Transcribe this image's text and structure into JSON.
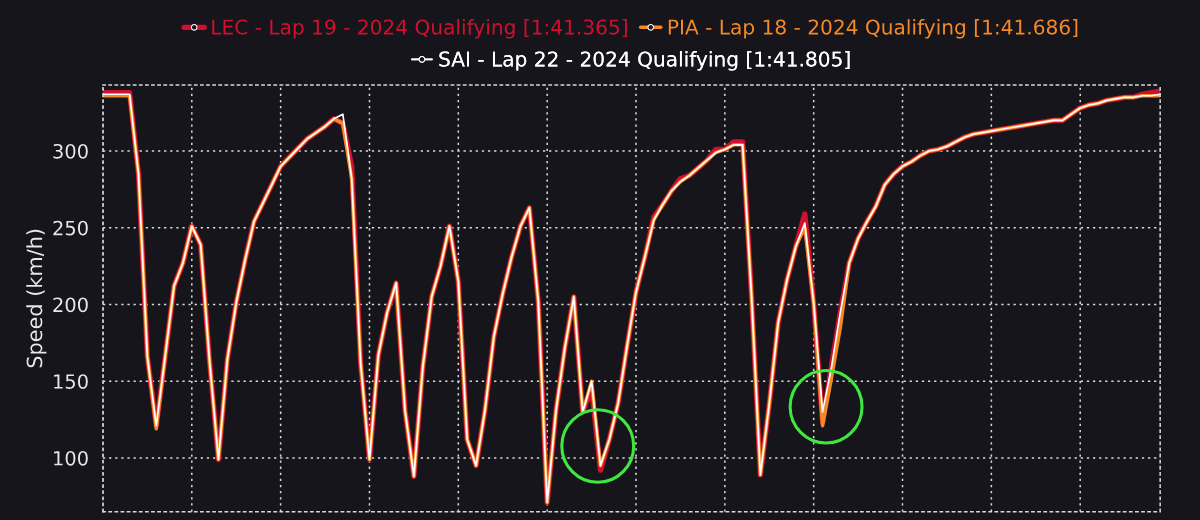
{
  "chart_data": {
    "type": "line",
    "ylabel": "Speed (km/h)",
    "categories": [
      null,
      null,
      null,
      null,
      null,
      null,
      null,
      null,
      null,
      null,
      null,
      null,
      null,
      null,
      null,
      null,
      null,
      null,
      null,
      null,
      null,
      null,
      null,
      null,
      null,
      null,
      null,
      null,
      null,
      null,
      null,
      null,
      null,
      null,
      null,
      null,
      null,
      null,
      null,
      null,
      null,
      null,
      null,
      null,
      null,
      null,
      null,
      null,
      null,
      null,
      null,
      null,
      null,
      null,
      null,
      null,
      null,
      null,
      null,
      null,
      null,
      null,
      null,
      null,
      null,
      null,
      null,
      null,
      null,
      null,
      null,
      null,
      null,
      null,
      null,
      null,
      null,
      null,
      null,
      null,
      null,
      null,
      null,
      null,
      null,
      null,
      null,
      null,
      null,
      null,
      null,
      null,
      null,
      null,
      null,
      null,
      null,
      null,
      null,
      null,
      null,
      null,
      null,
      null,
      null,
      null,
      null,
      null,
      null,
      null,
      null,
      null,
      null,
      null,
      null,
      null,
      null,
      null,
      null,
      null
    ],
    "series": [
      {
        "name": "LEC - Lap 19 - 2024 Qualifying [1:41.365]",
        "color": "#d0102e",
        "values": [
          338,
          338,
          338,
          338,
          285,
          166,
          121,
          166,
          212,
          227,
          251,
          239,
          163,
          99,
          164,
          201,
          229,
          254,
          266,
          278,
          290,
          296,
          302,
          308,
          312,
          316,
          321,
          318,
          290,
          162,
          99,
          167,
          195,
          214,
          131,
          88,
          159,
          205,
          225,
          251,
          215,
          112,
          95,
          131,
          179,
          207,
          231,
          251,
          263,
          202,
          71,
          131,
          172,
          205,
          130,
          145,
          92,
          112,
          136,
          173,
          208,
          231,
          257,
          265,
          274,
          282,
          284,
          289,
          294,
          301,
          301,
          306,
          306,
          206,
          89,
          135,
          188,
          216,
          238,
          259,
          201,
          123,
          160,
          195,
          227,
          243,
          254,
          264,
          278,
          285,
          290,
          293,
          297,
          300,
          301,
          303,
          306,
          309,
          311,
          312,
          313,
          314,
          315,
          316,
          317,
          318,
          319,
          320,
          320,
          324,
          328,
          330,
          331,
          333,
          334,
          335,
          335,
          337,
          338,
          339
        ]
      },
      {
        "name": "PIA - Lap 18 - 2024 Qualifying [1:41.686]",
        "color": "#f58a25",
        "values": [
          336,
          336,
          336,
          336,
          285,
          166,
          119,
          166,
          212,
          227,
          251,
          239,
          163,
          99,
          164,
          201,
          229,
          254,
          266,
          278,
          290,
          296,
          302,
          308,
          312,
          316,
          321,
          318,
          282,
          162,
          99,
          167,
          195,
          214,
          131,
          88,
          159,
          205,
          225,
          251,
          215,
          112,
          95,
          131,
          179,
          207,
          231,
          251,
          263,
          202,
          71,
          131,
          172,
          205,
          130,
          150,
          95,
          112,
          136,
          173,
          208,
          231,
          255,
          265,
          274,
          280,
          284,
          289,
          294,
          299,
          301,
          304,
          304,
          206,
          89,
          135,
          188,
          216,
          238,
          250,
          201,
          121,
          152,
          185,
          227,
          243,
          254,
          264,
          278,
          285,
          290,
          293,
          297,
          300,
          301,
          303,
          306,
          309,
          311,
          312,
          313,
          314,
          315,
          316,
          317,
          318,
          319,
          320,
          320,
          324,
          328,
          330,
          331,
          333,
          334,
          335,
          335,
          336,
          336,
          336
        ]
      },
      {
        "name": "SAI - Lap 22 - 2024 Qualifying [1:41.805]",
        "color": "#ffffff",
        "values": [
          337,
          337,
          337,
          337,
          285,
          166,
          121,
          166,
          212,
          227,
          251,
          239,
          163,
          99,
          164,
          201,
          229,
          254,
          266,
          278,
          290,
          296,
          302,
          308,
          312,
          316,
          321,
          324,
          282,
          162,
          99,
          167,
          195,
          214,
          131,
          88,
          159,
          205,
          225,
          251,
          215,
          112,
          95,
          131,
          179,
          207,
          231,
          251,
          263,
          202,
          71,
          131,
          172,
          205,
          130,
          150,
          95,
          112,
          136,
          173,
          208,
          231,
          255,
          265,
          274,
          280,
          284,
          289,
          294,
          299,
          301,
          304,
          304,
          206,
          89,
          135,
          188,
          216,
          238,
          253,
          201,
          130,
          159,
          195,
          227,
          243,
          254,
          264,
          278,
          285,
          290,
          293,
          297,
          300,
          301,
          303,
          306,
          309,
          311,
          312,
          313,
          314,
          315,
          316,
          317,
          318,
          319,
          320,
          320,
          324,
          328,
          330,
          331,
          333,
          334,
          335,
          335,
          336,
          336,
          337
        ]
      }
    ],
    "ylim": [
      65,
      343
    ],
    "yticks": [
      100,
      150,
      200,
      250,
      300
    ],
    "grid": true,
    "legend": "top",
    "line_style": "solid"
  }
}
